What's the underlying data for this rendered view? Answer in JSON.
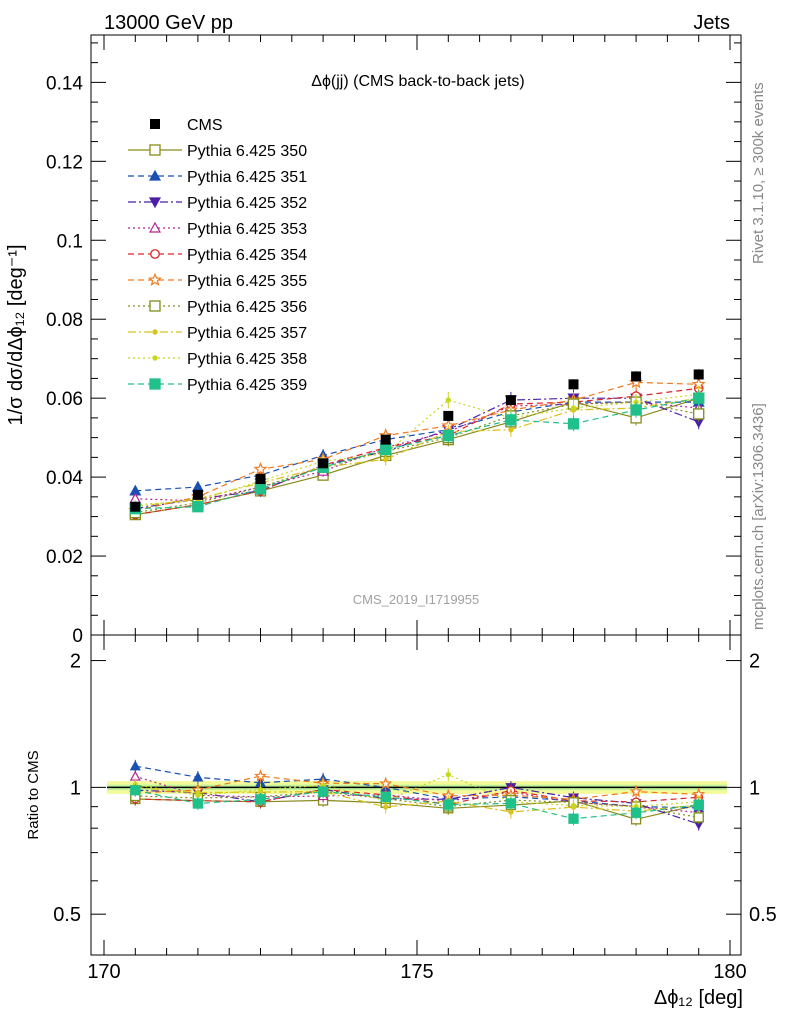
{
  "header": {
    "left": "13000 GeV pp",
    "right": "Jets"
  },
  "side_labels": {
    "top": "Rivet 3.1.10, ≥ 300k events",
    "bottom": "mcplots.cern.ch [arXiv:1306.3436]"
  },
  "watermark": "CMS_2019_I1719955",
  "chart_data": {
    "type": "scatter",
    "title": "Δϕ(jj) (CMS back-to-back jets)",
    "xlabel": "Δϕ₁₂ [deg]",
    "ylabel": "1/σ dσ/dΔϕ₁₂ [deg⁻¹]",
    "ratio_ylabel": "Ratio to CMS",
    "xlim": [
      170,
      180
    ],
    "ylim": [
      0,
      0.152
    ],
    "ratio_ylim": [
      0.4,
      2.3
    ],
    "ratio_scale": "log",
    "x_ticks": [
      "170",
      "175",
      "180"
    ],
    "y_ticks": [
      "0",
      "0.02",
      "0.04",
      "0.06",
      "0.08",
      "0.1",
      "0.12",
      "0.14"
    ],
    "ratio_ticks": [
      "0.5",
      "1",
      "2"
    ],
    "x": [
      170.5,
      171.5,
      172.5,
      173.5,
      174.5,
      175.5,
      176.5,
      177.5,
      178.5,
      179.5
    ],
    "data": {
      "name": "CMS",
      "values": [
        0.0325,
        0.0355,
        0.0395,
        0.0435,
        0.0495,
        0.0555,
        0.0595,
        0.0635,
        0.0655,
        0.066
      ]
    },
    "series": [
      {
        "name": "Pythia 6.425 350",
        "color": "#8a8a1a",
        "marker": "square-open",
        "dash": "solid",
        "values": [
          0.0305,
          0.033,
          0.0365,
          0.0405,
          0.0455,
          0.0495,
          0.054,
          0.059,
          0.055,
          0.06
        ]
      },
      {
        "name": "Pythia 6.425 351",
        "color": "#1a4fb4",
        "marker": "triangle-up",
        "dash": "dashed",
        "values": [
          0.0365,
          0.0375,
          0.0405,
          0.0455,
          0.0495,
          0.052,
          0.0565,
          0.059,
          0.059,
          0.059
        ]
      },
      {
        "name": "Pythia 6.425 352",
        "color": "#4b1fa8",
        "marker": "triangle-down",
        "dash": "dashdot",
        "values": [
          0.032,
          0.0345,
          0.0365,
          0.043,
          0.0465,
          0.052,
          0.0595,
          0.06,
          0.06,
          0.054
        ]
      },
      {
        "name": "Pythia 6.425 353",
        "color": "#b4238c",
        "marker": "triangle-open",
        "dash": "dotted",
        "values": [
          0.0345,
          0.034,
          0.0375,
          0.0415,
          0.0475,
          0.0515,
          0.058,
          0.0585,
          0.059,
          0.0575
        ]
      },
      {
        "name": "Pythia 6.425 354",
        "color": "#d9262a",
        "marker": "circle-open",
        "dash": "dashed",
        "values": [
          0.0305,
          0.033,
          0.0365,
          0.043,
          0.0475,
          0.0505,
          0.0585,
          0.059,
          0.0605,
          0.0625
        ]
      },
      {
        "name": "Pythia 6.425 355",
        "color": "#f07a1f",
        "marker": "star-open",
        "dash": "dashed",
        "values": [
          0.0315,
          0.035,
          0.042,
          0.0445,
          0.0505,
          0.053,
          0.057,
          0.0595,
          0.064,
          0.0635
        ]
      },
      {
        "name": "Pythia 6.425 356",
        "color": "#7f8f1a",
        "marker": "square-open",
        "dash": "dotted",
        "values": [
          0.031,
          0.0335,
          0.0375,
          0.0425,
          0.0465,
          0.05,
          0.0555,
          0.0585,
          0.059,
          0.056
        ]
      },
      {
        "name": "Pythia 6.425 357",
        "color": "#d9c21a",
        "marker": "dot",
        "dash": "dashdot",
        "values": [
          0.0325,
          0.0345,
          0.0385,
          0.0425,
          0.0445,
          0.0515,
          0.052,
          0.057,
          0.0575,
          0.06
        ]
      },
      {
        "name": "Pythia 6.425 358",
        "color": "#c8d81e",
        "marker": "dot",
        "dash": "dotted",
        "values": [
          0.033,
          0.034,
          0.039,
          0.044,
          0.046,
          0.0595,
          0.055,
          0.0575,
          0.059,
          0.061
        ]
      },
      {
        "name": "Pythia 6.425 359",
        "color": "#20c08a",
        "marker": "square",
        "dash": "dashed",
        "values": [
          0.032,
          0.0325,
          0.037,
          0.0425,
          0.047,
          0.0505,
          0.0545,
          0.0535,
          0.057,
          0.06
        ]
      }
    ]
  }
}
